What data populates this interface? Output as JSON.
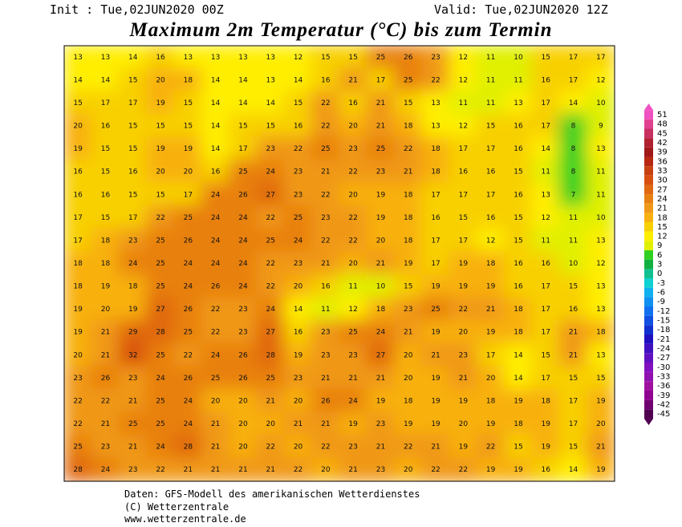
{
  "header": {
    "init": "Init : Tue,02JUN2020 00Z",
    "valid": "Valid: Tue,02JUN2020 12Z",
    "title": "Maximum 2m Temperatur (°C) bis zum Termin"
  },
  "map": {
    "values": [
      [
        13,
        13,
        14,
        16,
        13,
        13,
        13,
        13,
        12,
        15,
        15,
        25,
        26,
        23,
        12,
        11,
        10,
        15,
        17,
        17
      ],
      [
        14,
        14,
        15,
        20,
        18,
        14,
        14,
        13,
        14,
        16,
        21,
        17,
        25,
        22,
        12,
        11,
        11,
        16,
        17,
        12
      ],
      [
        15,
        17,
        17,
        19,
        15,
        14,
        14,
        14,
        15,
        22,
        16,
        21,
        15,
        13,
        11,
        11,
        13,
        17,
        14,
        10
      ],
      [
        20,
        16,
        15,
        15,
        15,
        14,
        15,
        15,
        16,
        22,
        20,
        21,
        18,
        13,
        12,
        15,
        16,
        17,
        8,
        9
      ],
      [
        19,
        15,
        15,
        19,
        19,
        14,
        17,
        23,
        22,
        25,
        23,
        25,
        22,
        18,
        17,
        17,
        16,
        14,
        8,
        13
      ],
      [
        16,
        15,
        16,
        20,
        20,
        16,
        25,
        24,
        23,
        21,
        22,
        23,
        21,
        18,
        16,
        16,
        15,
        11,
        8,
        11
      ],
      [
        16,
        16,
        15,
        15,
        17,
        24,
        26,
        27,
        23,
        22,
        20,
        19,
        18,
        17,
        17,
        17,
        16,
        13,
        7,
        11
      ],
      [
        17,
        15,
        17,
        22,
        25,
        24,
        24,
        22,
        25,
        23,
        22,
        19,
        18,
        16,
        15,
        16,
        15,
        12,
        11,
        10
      ],
      [
        17,
        18,
        23,
        25,
        26,
        24,
        24,
        25,
        24,
        22,
        22,
        20,
        18,
        17,
        17,
        12,
        15,
        11,
        11,
        13
      ],
      [
        18,
        18,
        24,
        25,
        24,
        24,
        24,
        22,
        23,
        21,
        20,
        21,
        19,
        17,
        19,
        18,
        16,
        16,
        10,
        12
      ],
      [
        18,
        19,
        18,
        25,
        24,
        26,
        24,
        22,
        20,
        16,
        11,
        10,
        15,
        19,
        19,
        19,
        16,
        17,
        15,
        13
      ],
      [
        19,
        20,
        19,
        27,
        26,
        22,
        23,
        24,
        14,
        11,
        12,
        18,
        23,
        25,
        22,
        21,
        18,
        17,
        16,
        13
      ],
      [
        19,
        21,
        29,
        28,
        25,
        22,
        23,
        27,
        16,
        23,
        25,
        24,
        21,
        19,
        20,
        19,
        18,
        17,
        21,
        18
      ],
      [
        20,
        21,
        32,
        25,
        22,
        24,
        26,
        28,
        19,
        23,
        23,
        27,
        20,
        21,
        23,
        17,
        14,
        15,
        21,
        13
      ],
      [
        23,
        26,
        23,
        24,
        26,
        25,
        26,
        25,
        23,
        21,
        21,
        21,
        20,
        19,
        21,
        20,
        14,
        17,
        15,
        15
      ],
      [
        22,
        22,
        21,
        25,
        24,
        20,
        20,
        21,
        20,
        26,
        24,
        19,
        18,
        19,
        19,
        18,
        19,
        18,
        17,
        19
      ],
      [
        22,
        21,
        25,
        25,
        24,
        21,
        20,
        20,
        21,
        21,
        19,
        23,
        19,
        19,
        20,
        19,
        18,
        19,
        17,
        20
      ],
      [
        25,
        23,
        21,
        24,
        28,
        21,
        20,
        22,
        20,
        22,
        23,
        21,
        22,
        21,
        19,
        22,
        15,
        19,
        15,
        21
      ],
      [
        28,
        24,
        23,
        22,
        21,
        21,
        21,
        21,
        22,
        20,
        21,
        23,
        20,
        22,
        22,
        19,
        19,
        16,
        14,
        19
      ]
    ]
  },
  "colorbar": {
    "ticks": [
      51,
      48,
      45,
      42,
      39,
      36,
      33,
      30,
      27,
      24,
      21,
      18,
      15,
      12,
      9,
      6,
      3,
      0,
      -3,
      -6,
      -9,
      -12,
      -15,
      -18,
      -21,
      -24,
      -27,
      -30,
      -33,
      -36,
      -39,
      -42,
      -45
    ],
    "colors": [
      "#f050c0",
      "#e04090",
      "#c83060",
      "#b02030",
      "#a01818",
      "#b82810",
      "#c84010",
      "#d85010",
      "#e06810",
      "#e88010",
      "#f09818",
      "#f8b010",
      "#f8d000",
      "#ffee00",
      "#e0f000",
      "#30d020",
      "#10b040",
      "#10c090",
      "#10d0d0",
      "#10b0f0",
      "#1090f0",
      "#1070f0",
      "#1050e0",
      "#1030d0",
      "#2010c0",
      "#4010c0",
      "#6010c0",
      "#8010c0",
      "#9010b0",
      "#a010a0",
      "#900090",
      "#700070",
      "#500050"
    ]
  },
  "footer": {
    "line1": "Daten: GFS-Modell des amerikanischen Wetterdienstes",
    "line2": "(C) Wetterzentrale",
    "line3": "www.wetterzentrale.de"
  }
}
